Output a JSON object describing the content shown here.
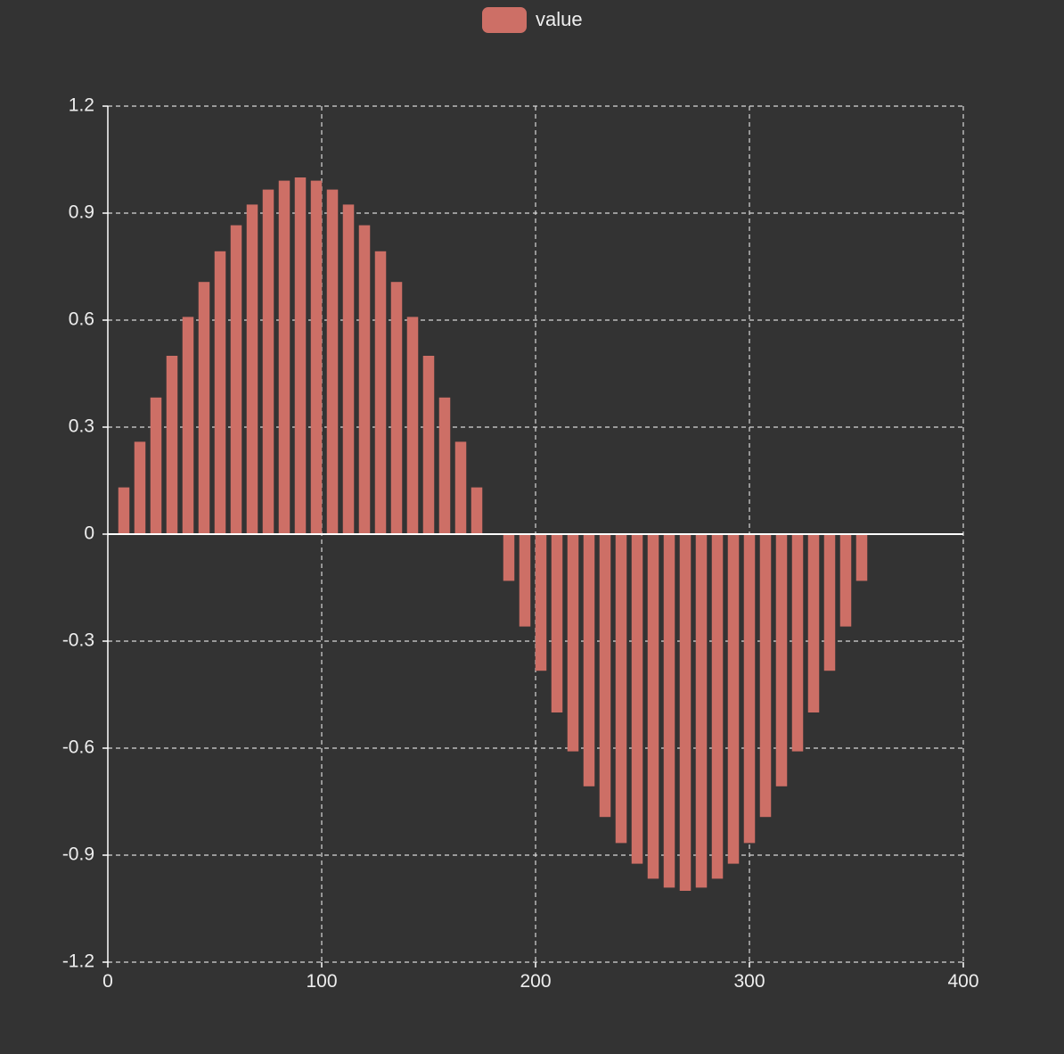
{
  "legend": {
    "label": "value"
  },
  "colors": {
    "background": "#333333",
    "bar": "#cd6f66",
    "axis": "#ffffff",
    "grid": "#d8d8d8",
    "text": "#eeeeee"
  },
  "chart_data": {
    "type": "bar",
    "title": "",
    "xlabel": "",
    "ylabel": "",
    "xlim": [
      0,
      400
    ],
    "ylim": [
      -1.2,
      1.2
    ],
    "x_ticks": [
      "0",
      "100",
      "200",
      "300",
      "400"
    ],
    "y_ticks": [
      "-1.2",
      "-0.9",
      "-0.6",
      "-0.3",
      "0",
      "0.3",
      "0.6",
      "0.9",
      "1.2"
    ],
    "grid": true,
    "legend_position": "top-center",
    "series": [
      {
        "name": "value",
        "x": [
          7.5,
          15,
          22.5,
          30,
          37.5,
          45,
          52.5,
          60,
          67.5,
          75,
          82.5,
          90,
          97.5,
          105,
          112.5,
          120,
          127.5,
          135,
          142.5,
          150,
          157.5,
          165,
          172.5,
          180,
          187.5,
          195,
          202.5,
          210,
          217.5,
          225,
          232.5,
          240,
          247.5,
          255,
          262.5,
          270,
          277.5,
          285,
          292.5,
          300,
          307.5,
          315,
          322.5,
          330,
          337.5,
          345,
          352.5
        ],
        "values": [
          0.131,
          0.259,
          0.383,
          0.5,
          0.609,
          0.707,
          0.793,
          0.866,
          0.924,
          0.966,
          0.991,
          1.0,
          0.991,
          0.966,
          0.924,
          0.866,
          0.793,
          0.707,
          0.609,
          0.5,
          0.383,
          0.259,
          0.131,
          0.0,
          -0.131,
          -0.259,
          -0.383,
          -0.5,
          -0.609,
          -0.707,
          -0.793,
          -0.866,
          -0.924,
          -0.966,
          -0.991,
          -1.0,
          -0.991,
          -0.966,
          -0.924,
          -0.866,
          -0.793,
          -0.707,
          -0.609,
          -0.5,
          -0.383,
          -0.259,
          -0.131
        ]
      }
    ]
  }
}
